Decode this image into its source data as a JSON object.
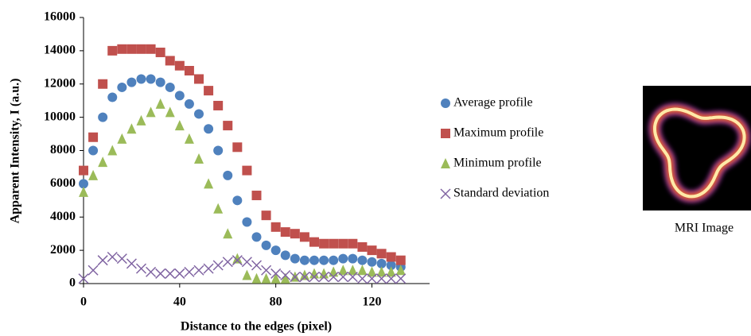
{
  "chart_data": {
    "type": "scatter",
    "xlabel": "Distance to the edges (pixel)",
    "ylabel": "Apparent Intensity, I (a.u.)",
    "x": [
      0,
      4,
      8,
      12,
      16,
      20,
      24,
      28,
      32,
      36,
      40,
      44,
      48,
      52,
      56,
      60,
      64,
      68,
      72,
      76,
      80,
      84,
      88,
      92,
      96,
      100,
      104,
      108,
      112,
      116,
      120,
      124,
      128,
      132
    ],
    "series": [
      {
        "name": "Average profile",
        "color": "#4f81bd",
        "marker": "circle",
        "values": [
          6000,
          8000,
          10000,
          11200,
          11800,
          12100,
          12300,
          12300,
          12100,
          11800,
          11300,
          10800,
          10200,
          9300,
          8000,
          6500,
          5000,
          3700,
          2800,
          2300,
          2000,
          1700,
          1500,
          1400,
          1400,
          1400,
          1400,
          1500,
          1500,
          1400,
          1300,
          1200,
          1100,
          1000
        ]
      },
      {
        "name": "Maximum profile",
        "color": "#c0504d",
        "marker": "square",
        "values": [
          6800,
          8800,
          12000,
          14000,
          14100,
          14100,
          14100,
          14100,
          13900,
          13400,
          13100,
          12800,
          12300,
          11600,
          10700,
          9500,
          8200,
          6800,
          5300,
          4100,
          3400,
          3100,
          3000,
          2800,
          2500,
          2400,
          2400,
          2400,
          2400,
          2200,
          2000,
          1800,
          1600,
          1400
        ]
      },
      {
        "name": "Minimum profile",
        "color": "#9bbb59",
        "marker": "triangle",
        "values": [
          5500,
          6500,
          7300,
          8000,
          8700,
          9300,
          9800,
          10300,
          10800,
          10300,
          9500,
          8700,
          7500,
          6000,
          4500,
          3000,
          1500,
          500,
          300,
          300,
          300,
          300,
          400,
          500,
          600,
          600,
          700,
          800,
          800,
          800,
          700,
          700,
          700,
          800
        ]
      },
      {
        "name": "Standard deviation",
        "color": "#8064a2",
        "marker": "x",
        "values": [
          300,
          800,
          1400,
          1600,
          1500,
          1200,
          900,
          700,
          600,
          600,
          600,
          700,
          800,
          900,
          1100,
          1300,
          1400,
          1300,
          1100,
          800,
          600,
          500,
          400,
          400,
          400,
          400,
          400,
          400,
          400,
          300,
          300,
          300,
          300,
          300
        ]
      }
    ],
    "xlim": [
      0,
      144
    ],
    "xticks": [
      0,
      40,
      80,
      120
    ],
    "ylim": [
      0,
      16000
    ],
    "yticks": [
      0,
      2000,
      4000,
      6000,
      8000,
      10000,
      12000,
      14000,
      16000
    ],
    "grid": false,
    "legend": "right"
  },
  "image": {
    "caption": "MRI Image"
  }
}
